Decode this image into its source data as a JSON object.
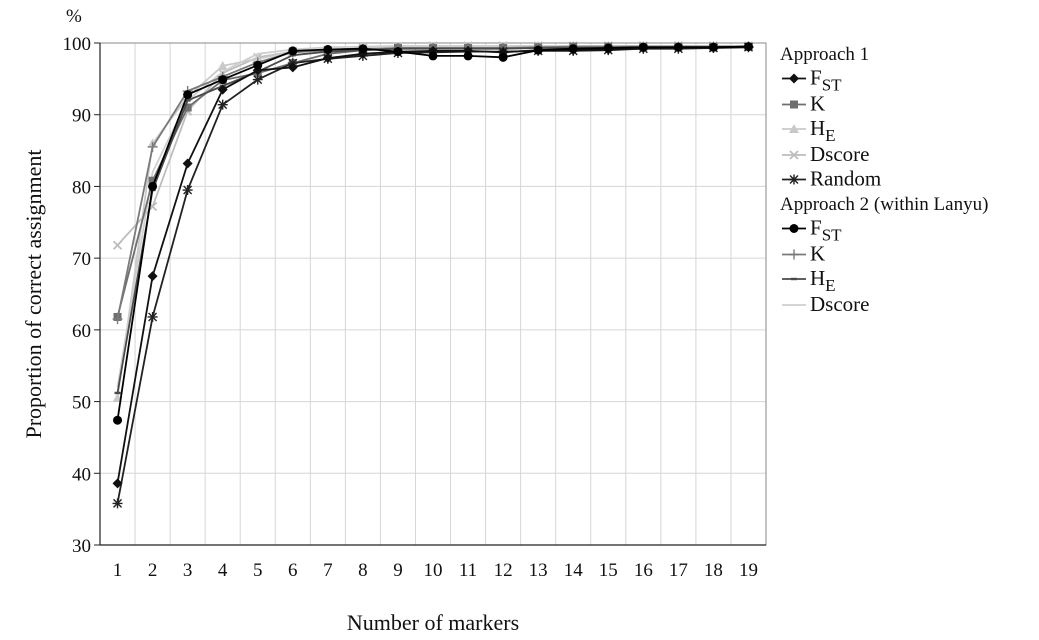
{
  "chart_data": {
    "type": "line",
    "title": "",
    "unit_label": "%",
    "xlabel": "Number of markers",
    "ylabel": "Proportion of correct assignment",
    "ylim": [
      30,
      100
    ],
    "yticks": [
      30,
      40,
      50,
      60,
      70,
      80,
      90,
      100
    ],
    "grid": true,
    "legend_position": "right",
    "x": [
      1,
      2,
      3,
      4,
      5,
      6,
      7,
      8,
      9,
      10,
      11,
      12,
      13,
      14,
      15,
      16,
      17,
      18,
      19
    ],
    "groups": [
      {
        "title": "Approach 1",
        "series": [
          0,
          1,
          2,
          3,
          4
        ]
      },
      {
        "title": "Approach 2 (within Lanyu)",
        "series": [
          5,
          6,
          7,
          8
        ]
      }
    ],
    "series": [
      {
        "name": "F",
        "subscript": "ST",
        "group": "Approach 1",
        "color": "#111111",
        "marker": "diamond",
        "values": [
          38.6,
          67.5,
          83.2,
          93.5,
          96.2,
          96.6,
          97.9,
          98.5,
          98.8,
          98.9,
          98.9,
          98.7,
          99.0,
          99.0,
          99.1,
          99.3,
          99.4,
          99.4,
          99.5
        ]
      },
      {
        "name": "K",
        "group": "Approach 1",
        "color": "#6e6e6e",
        "marker": "square",
        "values": [
          61.8,
          80.8,
          91.0,
          94.8,
          95.8,
          97.2,
          98.5,
          99.0,
          99.3,
          99.3,
          99.3,
          99.3,
          99.4,
          99.5,
          99.5,
          99.5,
          99.5,
          99.5,
          99.5
        ]
      },
      {
        "name": "H",
        "subscript": "E",
        "group": "Approach 1",
        "color": "#c9c9c9",
        "marker": "triangle",
        "values": [
          50.5,
          86.0,
          92.5,
          96.8,
          97.8,
          98.8,
          99.0,
          99.3,
          99.5,
          99.5,
          99.5,
          99.5,
          99.6,
          99.6,
          99.6,
          99.6,
          99.6,
          99.6,
          99.6
        ]
      },
      {
        "name": "Dscore",
        "group": "Approach 1",
        "color": "#bdbdbd",
        "marker": "x",
        "values": [
          71.8,
          77.2,
          90.5,
          95.8,
          98.0,
          98.8,
          99.0,
          99.3,
          99.5,
          99.6,
          99.6,
          99.6,
          99.6,
          99.6,
          99.6,
          99.6,
          99.6,
          99.6,
          99.6
        ]
      },
      {
        "name": "Random",
        "group": "Approach 1",
        "color": "#222222",
        "marker": "star",
        "values": [
          35.8,
          61.8,
          79.5,
          91.4,
          94.9,
          97.2,
          97.8,
          98.2,
          98.6,
          98.7,
          98.8,
          98.8,
          98.9,
          98.9,
          99.0,
          99.2,
          99.2,
          99.3,
          99.4
        ]
      },
      {
        "name": "F",
        "subscript": "ST",
        "group": "Approach 2 (within Lanyu)",
        "color": "#000000",
        "marker": "circle",
        "values": [
          47.4,
          80.0,
          92.8,
          94.9,
          96.9,
          98.9,
          99.1,
          99.2,
          98.8,
          98.2,
          98.2,
          98.0,
          99.0,
          99.2,
          99.3,
          99.4,
          99.4,
          99.4,
          99.5
        ]
      },
      {
        "name": "K",
        "group": "Approach 2 (within Lanyu)",
        "color": "#7a7a7a",
        "marker": "plus",
        "values": [
          61.5,
          85.5,
          93.3,
          95.3,
          97.3,
          98.7,
          99.0,
          99.1,
          99.3,
          99.3,
          99.3,
          99.3,
          99.3,
          99.4,
          99.4,
          99.4,
          99.4,
          99.4,
          99.5
        ]
      },
      {
        "name": "H",
        "subscript": "E",
        "group": "Approach 2 (within Lanyu)",
        "color": "#4a4a4a",
        "marker": "dash",
        "values": [
          51.2,
          79.5,
          92.0,
          94.0,
          96.0,
          98.3,
          98.8,
          99.0,
          99.2,
          99.2,
          99.2,
          99.2,
          99.3,
          99.3,
          99.3,
          99.4,
          99.4,
          99.4,
          99.5
        ]
      },
      {
        "name": "Dscore",
        "group": "Approach 2 (within Lanyu)",
        "color": "#cfcfcf",
        "marker": "none",
        "values": [
          52.0,
          82.0,
          92.0,
          96.0,
          98.5,
          99.1,
          99.4,
          99.5,
          99.6,
          99.6,
          99.6,
          99.6,
          99.6,
          99.6,
          99.6,
          99.6,
          99.6,
          99.6,
          99.6
        ]
      }
    ]
  }
}
